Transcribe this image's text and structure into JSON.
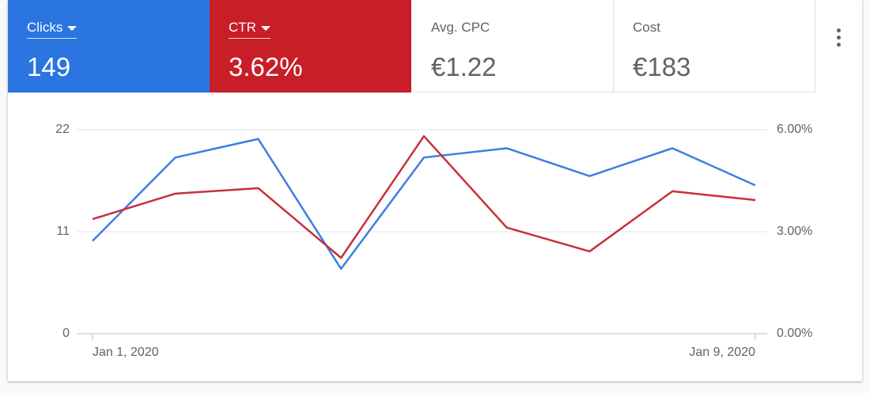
{
  "tiles": [
    {
      "value": 149
    },
    {
      "value": "3.62%"
    },
    {
      "label": "Avg. CPC",
      "value": "€1.22"
    },
    {
      "label": "Cost",
      "value": "€183"
    }
  ],
  "chart_data": {
    "type": "line",
    "categories": [
      "Jan 1, 2020",
      null,
      null,
      null,
      null,
      null,
      null,
      null,
      "Jan 9, 2020"
    ],
    "series": [
      {
        "name": "Clicks",
        "color": "#3b7fe4",
        "values": [
          10,
          19,
          21,
          7,
          19,
          20,
          17,
          20,
          16
        ]
      },
      {
        "name": "CTR",
        "color": "#c8303a",
        "axis": "y2",
        "values": [
          3.37,
          4.12,
          4.28,
          2.23,
          5.81,
          3.12,
          2.42,
          4.19,
          3.93
        ]
      }
    ],
    "tile_colors": [
      "#2a75e0",
      "#c81e28"
    ],
    "ylim": [
      0,
      22
    ],
    "yticks": [
      0,
      11,
      22
    ],
    "y2lim": [
      0,
      6
    ],
    "y2ticks": [
      {
        "value": 0,
        "label": "0.00%"
      },
      {
        "value": 3,
        "label": "3.00%"
      },
      {
        "value": 6,
        "label": "6.00%"
      }
    ],
    "grid": true
  }
}
